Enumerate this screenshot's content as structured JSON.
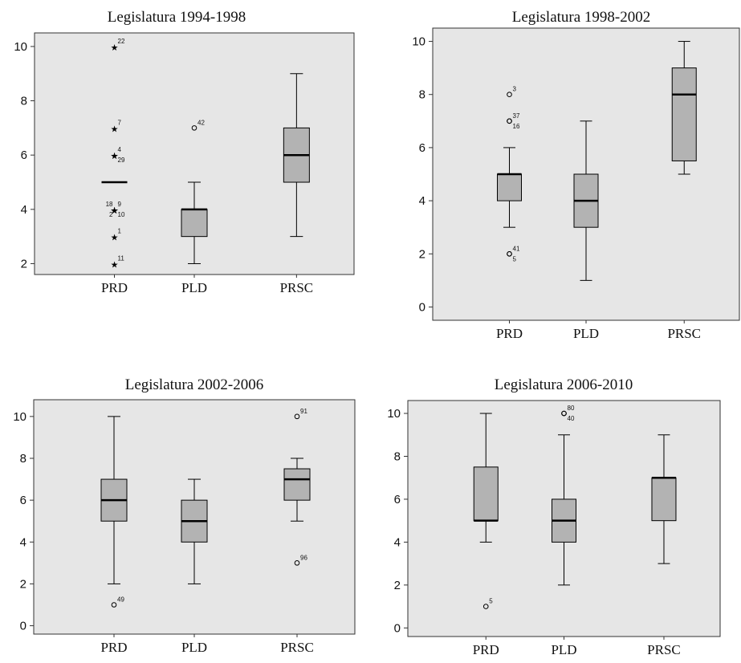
{
  "colors": {
    "plot_background": "#e6e6e6",
    "box_fill": "#b3b3b3",
    "axis": "#333333"
  },
  "chart_data": [
    {
      "type": "boxplot",
      "title": "Legislatura 1994-1998",
      "categories": [
        "PRD",
        "PLD",
        "PRSC"
      ],
      "ylim": [
        1.6,
        10.5
      ],
      "yticks": [
        "2",
        "4",
        "6",
        "8",
        "10"
      ],
      "boxes": [
        {
          "category": "PRD",
          "whisker_low": 5,
          "q1": 5,
          "median": 5,
          "q3": 5,
          "whisker_high": 5,
          "outliers": [
            {
              "value": 10,
              "label": "22",
              "marker": "star"
            },
            {
              "value": 7,
              "label": "7",
              "marker": "star"
            },
            {
              "value": 6,
              "label": "4",
              "marker": "star"
            },
            {
              "value": 6,
              "label": "29",
              "marker": "star",
              "label_pos": "below"
            },
            {
              "value": 4,
              "label": "18",
              "marker": "star",
              "label_pos": "top-left"
            },
            {
              "value": 4,
              "label": "9",
              "marker": "star"
            },
            {
              "value": 4,
              "label": "2",
              "marker": "star",
              "label_pos": "bottom-left"
            },
            {
              "value": 4,
              "label": "10",
              "marker": "star",
              "label_pos": "below"
            },
            {
              "value": 3,
              "label": "1",
              "marker": "star"
            },
            {
              "value": 2,
              "label": "11",
              "marker": "star"
            }
          ]
        },
        {
          "category": "PLD",
          "whisker_low": 2,
          "q1": 3,
          "median": 4,
          "q3": 4,
          "whisker_high": 5,
          "outliers": [
            {
              "value": 7,
              "label": "42",
              "marker": "circle"
            }
          ]
        },
        {
          "category": "PRSC",
          "whisker_low": 3,
          "q1": 5,
          "median": 6,
          "q3": 7,
          "whisker_high": 9,
          "outliers": []
        }
      ]
    },
    {
      "type": "boxplot",
      "title": "Legislatura 1998-2002",
      "categories": [
        "PRD",
        "PLD",
        "PRSC"
      ],
      "ylim": [
        -0.5,
        10.5
      ],
      "yticks": [
        "0",
        "2",
        "4",
        "6",
        "8",
        "10"
      ],
      "boxes": [
        {
          "category": "PRD",
          "whisker_low": 3,
          "q1": 4,
          "median": 5,
          "q3": 5,
          "whisker_high": 6,
          "outliers": [
            {
              "value": 8,
              "label": "3",
              "marker": "circle"
            },
            {
              "value": 7,
              "label": "37",
              "marker": "circle"
            },
            {
              "value": 7,
              "label": "16",
              "marker": "circle",
              "label_pos": "below"
            },
            {
              "value": 2,
              "label": "41",
              "marker": "circle"
            },
            {
              "value": 2,
              "label": "5",
              "marker": "circle",
              "label_pos": "below"
            }
          ]
        },
        {
          "category": "PLD",
          "whisker_low": 1,
          "q1": 3,
          "median": 4,
          "q3": 5,
          "whisker_high": 7,
          "outliers": []
        },
        {
          "category": "PRSC",
          "whisker_low": 5,
          "q1": 5.5,
          "median": 8,
          "q3": 9,
          "whisker_high": 10,
          "outliers": []
        }
      ]
    },
    {
      "type": "boxplot",
      "title": "Legislatura 2002-2006",
      "categories": [
        "PRD",
        "PLD",
        "PRSC"
      ],
      "ylim": [
        -0.4,
        10.8
      ],
      "yticks": [
        "0",
        "2",
        "4",
        "6",
        "8",
        "10"
      ],
      "boxes": [
        {
          "category": "PRD",
          "whisker_low": 2,
          "q1": 5,
          "median": 6,
          "q3": 7,
          "whisker_high": 10,
          "outliers": [
            {
              "value": 1,
              "label": "49",
              "marker": "circle"
            }
          ]
        },
        {
          "category": "PLD",
          "whisker_low": 2,
          "q1": 4,
          "median": 5,
          "q3": 6,
          "whisker_high": 7,
          "outliers": []
        },
        {
          "category": "PRSC",
          "whisker_low": 5,
          "q1": 6,
          "median": 7,
          "q3": 7.5,
          "whisker_high": 8,
          "outliers": [
            {
              "value": 10,
              "label": "91",
              "marker": "circle"
            },
            {
              "value": 3,
              "label": "96",
              "marker": "circle"
            }
          ]
        }
      ]
    },
    {
      "type": "boxplot",
      "title": "Legislatura 2006-2010",
      "categories": [
        "PRD",
        "PLD",
        "PRSC"
      ],
      "ylim": [
        -0.4,
        10.6
      ],
      "yticks": [
        "0",
        "2",
        "4",
        "6",
        "8",
        "10"
      ],
      "boxes": [
        {
          "category": "PRD",
          "whisker_low": 4,
          "q1": 5,
          "median": 5,
          "q3": 7.5,
          "whisker_high": 10,
          "outliers": [
            {
              "value": 1,
              "label": "5",
              "marker": "circle"
            }
          ]
        },
        {
          "category": "PLD",
          "whisker_low": 2,
          "q1": 4,
          "median": 5,
          "q3": 6,
          "whisker_high": 9,
          "outliers": [
            {
              "value": 10,
              "label": "80",
              "marker": "circle"
            },
            {
              "value": 10,
              "label": "40",
              "marker": "circle",
              "label_pos": "below"
            }
          ]
        },
        {
          "category": "PRSC",
          "whisker_low": 3,
          "q1": 5,
          "median": 7,
          "q3": 7,
          "whisker_high": 9,
          "outliers": []
        }
      ]
    }
  ]
}
